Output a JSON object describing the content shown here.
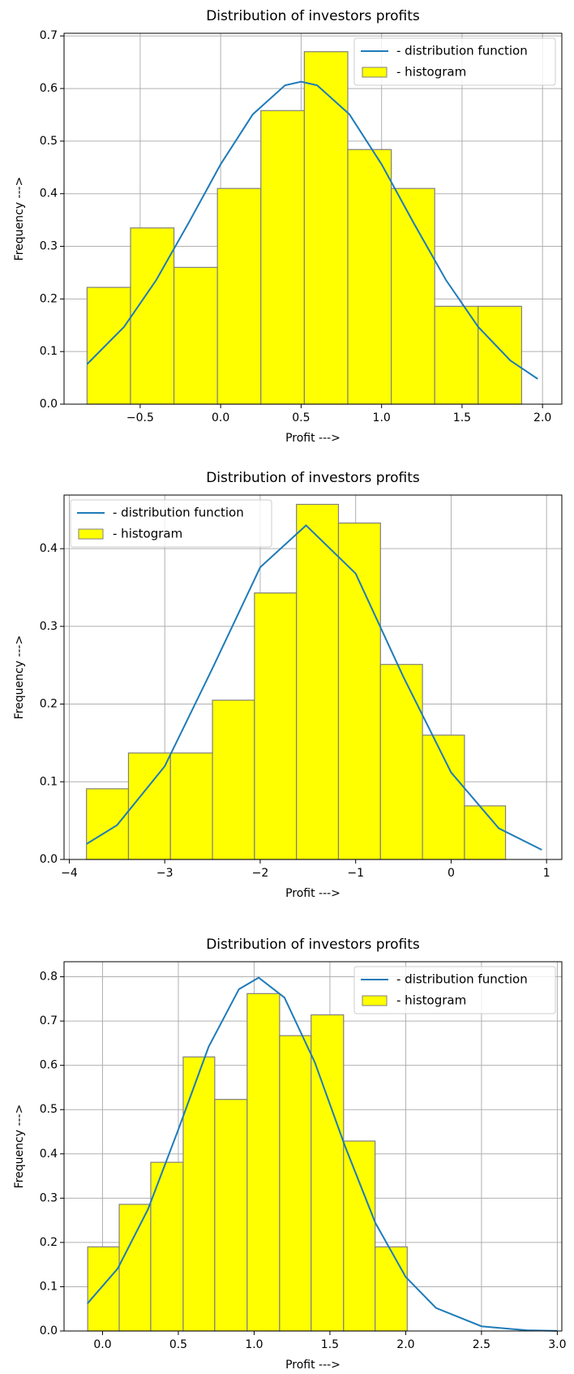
{
  "chart_data": [
    {
      "type": "histogram",
      "title": "Distribution of investors profits",
      "xlabel": "Profit --->",
      "ylabel": "Frequency  --->",
      "xlim": [
        -0.973,
        2.12
      ],
      "ylim": [
        0,
        0.705
      ],
      "xticks": [
        {
          "value": -0.5,
          "label": "−0.5"
        },
        {
          "value": 0,
          "label": "0.0"
        },
        0.5,
        {
          "value": 1,
          "label": "1.0"
        },
        1.5,
        {
          "value": 2,
          "label": "2.0"
        }
      ],
      "yticks": [
        {
          "value": 0,
          "label": "0.0"
        },
        0.1,
        0.2,
        0.3,
        0.4,
        0.5,
        0.6,
        0.7
      ],
      "grid": true,
      "legend": "upper right",
      "series": [
        {
          "name": "- distribution function",
          "type": "line",
          "color": "#1f7bb8",
          "x": [
            -0.83,
            -0.6,
            -0.4,
            -0.2,
            0,
            0.2,
            0.4,
            0.5,
            0.6,
            0.8,
            1.0,
            1.2,
            1.4,
            1.6,
            1.8,
            1.97
          ],
          "values": [
            0.076,
            0.147,
            0.236,
            0.344,
            0.456,
            0.551,
            0.606,
            0.613,
            0.606,
            0.551,
            0.456,
            0.344,
            0.236,
            0.147,
            0.083,
            0.048
          ]
        },
        {
          "name": "- histogram",
          "type": "bar",
          "color": "#ffff00",
          "edgecolor": "#808080",
          "bins": [
            -0.83,
            -0.56,
            -0.29,
            -0.02,
            0.25,
            0.52,
            0.79,
            1.06,
            1.33,
            1.6,
            1.87
          ],
          "values": [
            0.222,
            0.335,
            0.26,
            0.41,
            0.558,
            0.67,
            0.484,
            0.41,
            0.186,
            0.186
          ]
        }
      ]
    },
    {
      "type": "histogram",
      "title": "Distribution of investors profits",
      "xlabel": "Profit --->",
      "ylabel": "Frequency  --->",
      "xlim": [
        -4.055,
        1.16
      ],
      "ylim": [
        0,
        0.469
      ],
      "xticks": [
        {
          "value": -4,
          "label": "−4"
        },
        {
          "value": -3,
          "label": "−3"
        },
        {
          "value": -2,
          "label": "−2"
        },
        {
          "value": -1,
          "label": "−1"
        },
        0,
        1
      ],
      "yticks": [
        {
          "value": 0,
          "label": "0.0"
        },
        0.1,
        0.2,
        0.3,
        0.4
      ],
      "grid": true,
      "legend": "upper left",
      "series": [
        {
          "name": "- distribution function",
          "type": "line",
          "color": "#1f7bb8",
          "x": [
            -3.82,
            -3.5,
            -3,
            -2.5,
            -2,
            -1.52,
            -1,
            -0.5,
            0,
            0.5,
            0.95
          ],
          "values": [
            0.0199,
            0.0441,
            0.12,
            0.246,
            0.376,
            0.43,
            0.368,
            0.235,
            0.112,
            0.04,
            0.0124
          ]
        },
        {
          "name": "- histogram",
          "type": "bar",
          "color": "#ffff00",
          "edgecolor": "#808080",
          "bins": [
            -3.82,
            -3.38,
            -2.94,
            -2.5,
            -2.06,
            -1.62,
            -1.18,
            -0.74,
            -0.3,
            0.14,
            0.57
          ],
          "values": [
            0.091,
            0.137,
            0.137,
            0.205,
            0.343,
            0.457,
            0.433,
            0.251,
            0.16,
            0.069
          ]
        }
      ]
    },
    {
      "type": "histogram",
      "title": "Distribution of investors profits",
      "xlabel": "Profit --->",
      "ylabel": "Frequency  --->",
      "xlim": [
        -0.254,
        3.03
      ],
      "ylim": [
        0,
        0.834
      ],
      "xticks": [
        {
          "value": 0,
          "label": "0.0"
        },
        0.5,
        {
          "value": 1,
          "label": "1.0"
        },
        1.5,
        {
          "value": 2,
          "label": "2.0"
        },
        2.5,
        {
          "value": 3,
          "label": "3.0"
        }
      ],
      "yticks": [
        {
          "value": 0,
          "label": "0.0"
        },
        0.1,
        0.2,
        0.3,
        0.4,
        0.5,
        0.6,
        0.7,
        0.8
      ],
      "grid": true,
      "legend": "upper right",
      "series": [
        {
          "name": "- distribution function",
          "type": "line",
          "color": "#1f7bb8",
          "x": [
            -0.1,
            0.1,
            0.3,
            0.5,
            0.7,
            0.9,
            1.03,
            1.2,
            1.4,
            1.6,
            1.8,
            2.0,
            2.2,
            2.5,
            2.8,
            3.0
          ],
          "values": [
            0.062,
            0.141,
            0.275,
            0.455,
            0.642,
            0.772,
            0.798,
            0.753,
            0.607,
            0.417,
            0.244,
            0.122,
            0.052,
            0.0106,
            0.0015,
            0.0003
          ]
        },
        {
          "name": "- histogram",
          "type": "bar",
          "color": "#ffff00",
          "edgecolor": "#808080",
          "bins": [
            -0.098,
            0.11,
            0.318,
            0.532,
            0.74,
            0.954,
            1.168,
            1.376,
            1.59,
            1.798,
            2.01
          ],
          "values": [
            0.19,
            0.286,
            0.381,
            0.619,
            0.523,
            0.762,
            0.667,
            0.714,
            0.429,
            0.19
          ]
        }
      ]
    }
  ]
}
